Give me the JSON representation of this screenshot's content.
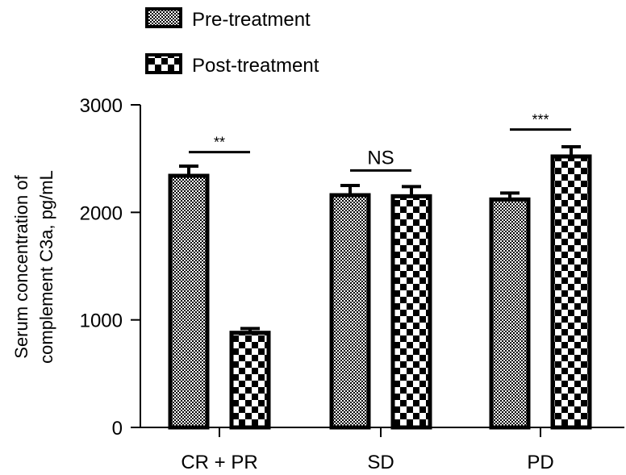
{
  "chart_data": {
    "type": "bar",
    "title": "",
    "xlabel": "",
    "ylabel_lines": [
      "Serum concentration of",
      "complement C3a, pg/mL"
    ],
    "ylim": [
      0,
      3000
    ],
    "yticks": [
      0,
      1000,
      2000,
      3000
    ],
    "categories": [
      "CR + PR",
      "SD",
      "PD"
    ],
    "series": [
      {
        "name": "Pre-treatment",
        "pattern": "fine-checker",
        "values": [
          2340,
          2160,
          2120
        ],
        "errors": [
          90,
          90,
          60
        ]
      },
      {
        "name": "Post-treatment",
        "pattern": "coarse-checker",
        "values": [
          880,
          2150,
          2520
        ],
        "errors": [
          40,
          90,
          90
        ]
      }
    ],
    "significance": [
      {
        "category": "CR + PR",
        "label": "**",
        "level": 2560
      },
      {
        "category": "SD",
        "label": "NS",
        "level": 2390
      },
      {
        "category": "PD",
        "label": "***",
        "level": 2770
      }
    ],
    "legend_position": "top-left",
    "grid": false,
    "colors": {
      "bar_edge": "#000000",
      "fill_light": "#ffffff",
      "fill_dark": "#000000"
    }
  }
}
